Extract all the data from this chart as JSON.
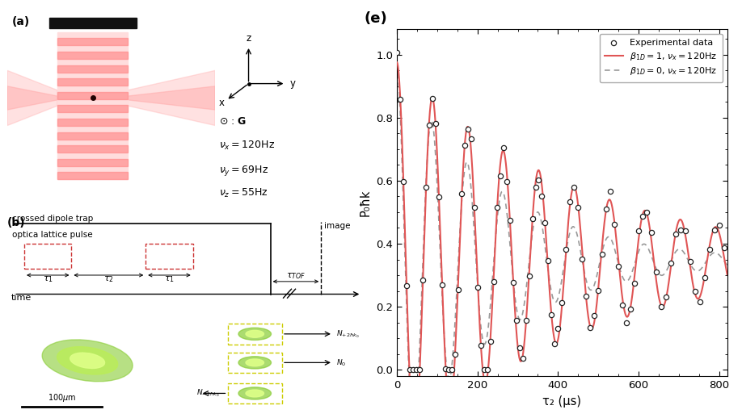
{
  "panel_e_label": "(e)",
  "xlabel": "τ₂ (μs)",
  "ylabel": "P₀ħk",
  "xlim": [
    0,
    820
  ],
  "ylim": [
    -0.02,
    1.08
  ],
  "yticks": [
    0.0,
    0.2,
    0.4,
    0.6,
    0.8,
    1.0
  ],
  "xticks": [
    0,
    200,
    400,
    600,
    800
  ],
  "line_color_red": "#e05555",
  "line_color_gray": "#999999",
  "exp_color": "#222222",
  "teal_bg": "#2a8070",
  "lattice_color_light": "#ffbbbb",
  "lattice_color_dark": "#ff8888",
  "bar_color": "#111111",
  "beam_color": "#ffaaaa",
  "pulse_color": "#cc3333"
}
